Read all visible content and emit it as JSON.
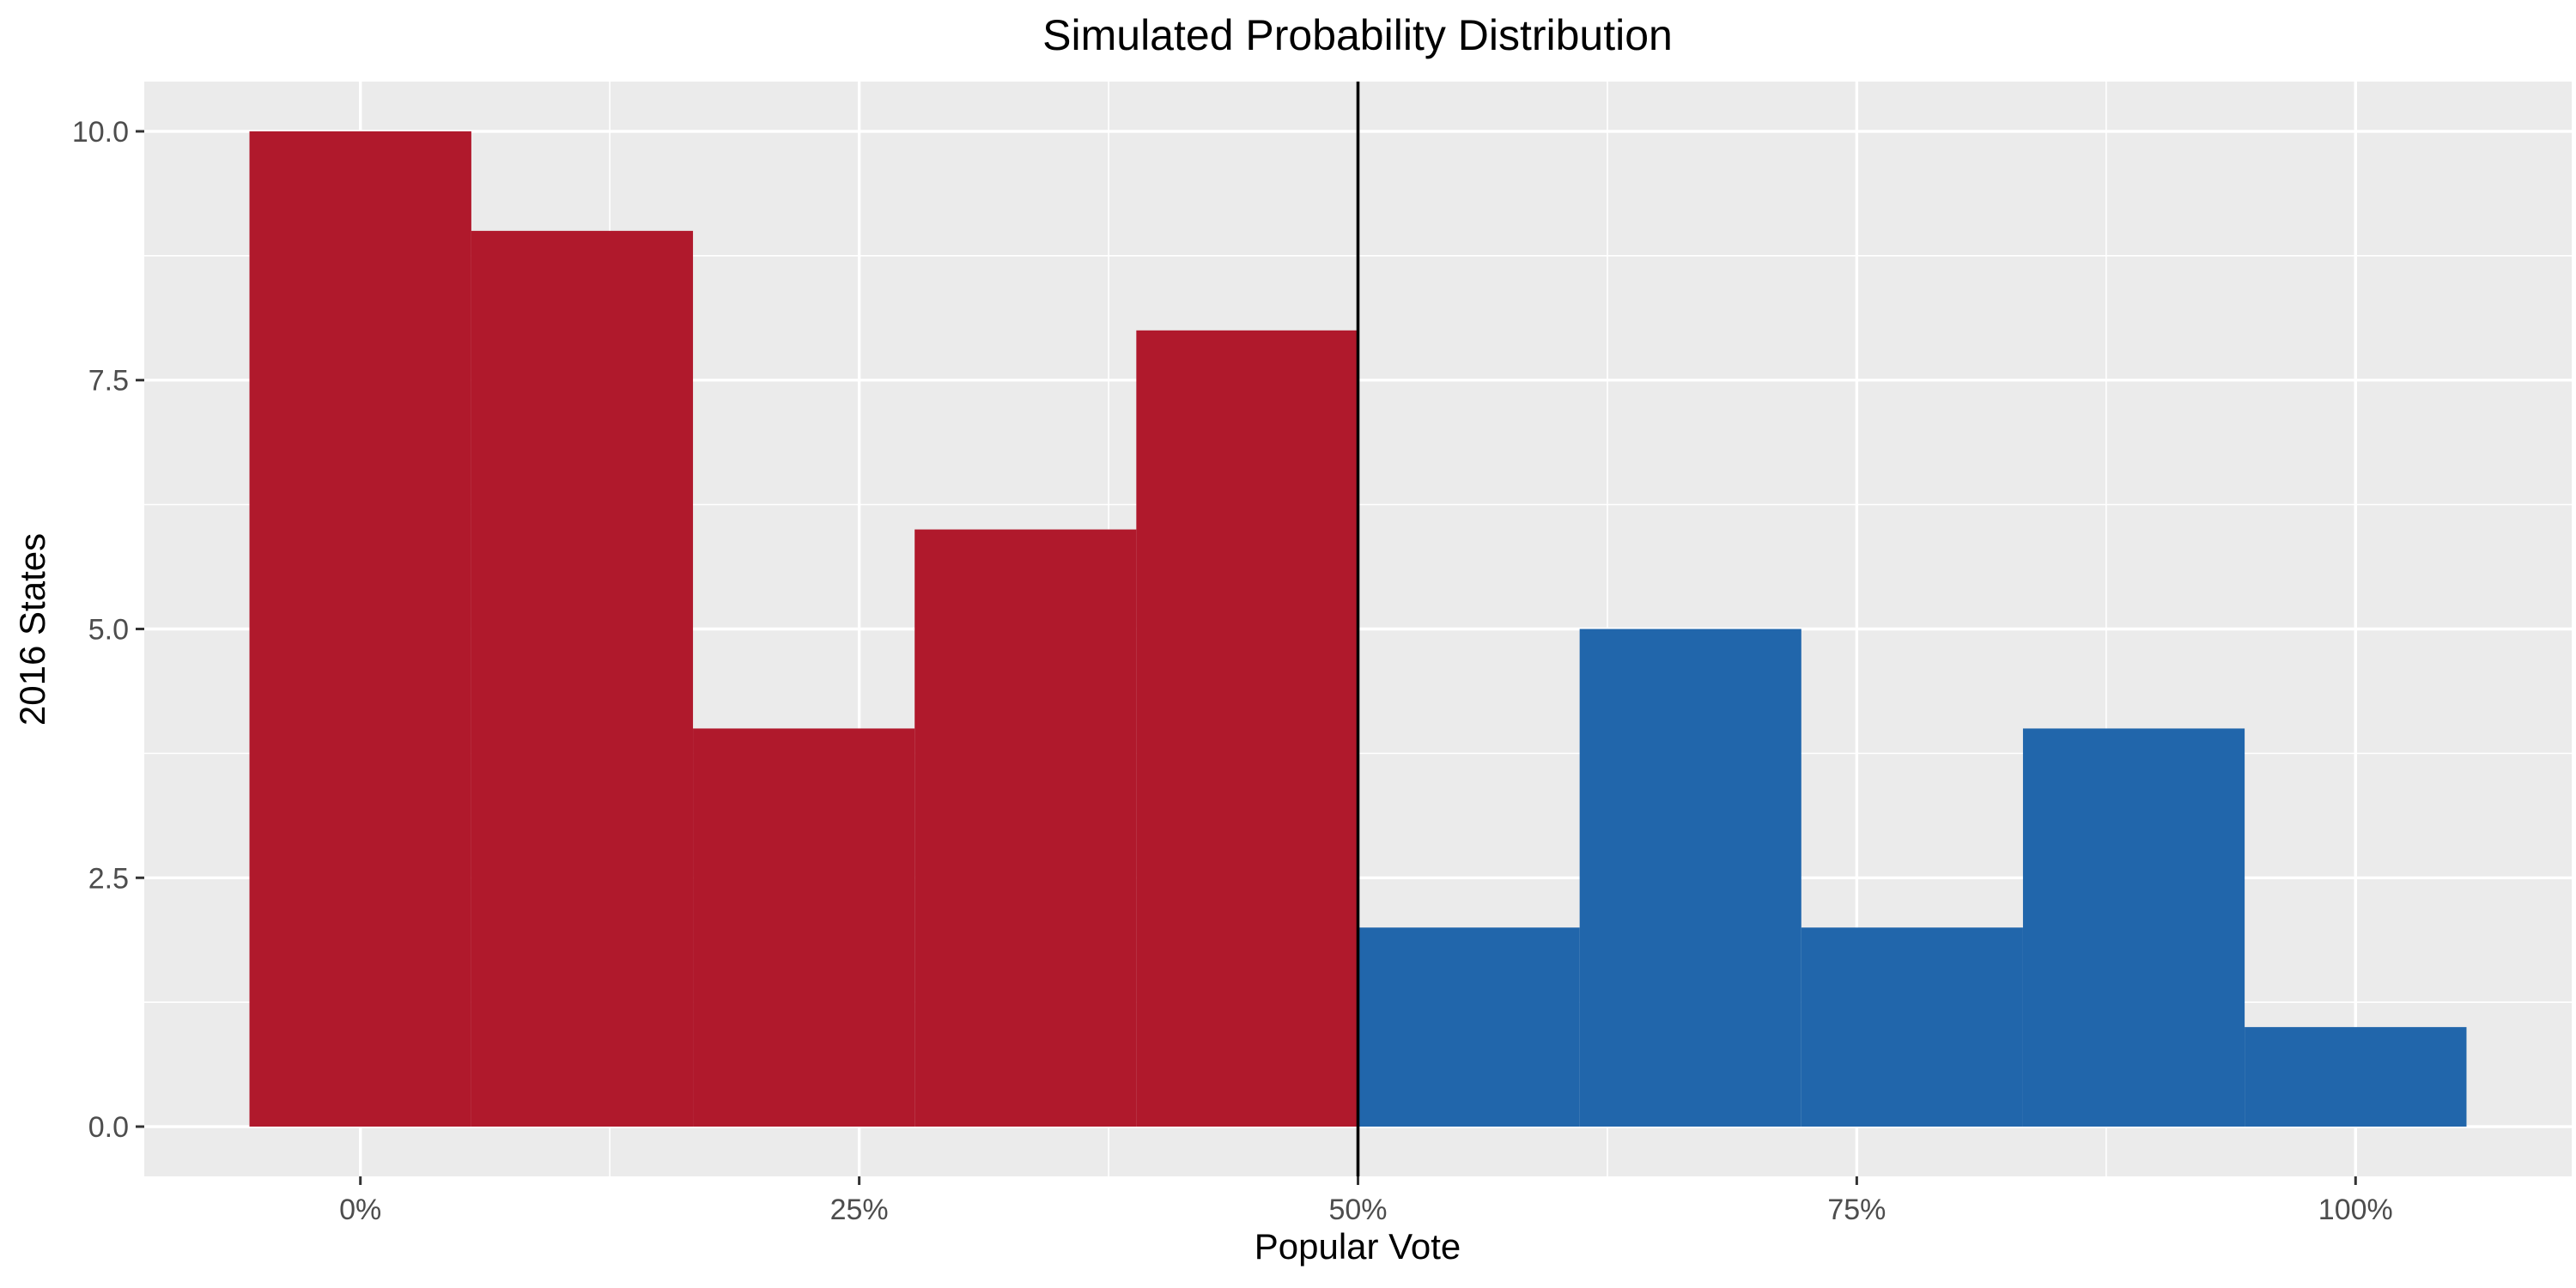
{
  "chart_data": {
    "type": "bar",
    "subtype": "histogram",
    "title": "Simulated Probability Distribution",
    "xlabel": "Popular Vote",
    "ylabel": "2016 States",
    "xlim": [
      -0.10833,
      1.10833
    ],
    "ylim": [
      -0.5,
      10.5
    ],
    "x_ticks": [
      {
        "value": 0,
        "label": "0%"
      },
      {
        "value": 0.25,
        "label": "25%"
      },
      {
        "value": 0.5,
        "label": "50%"
      },
      {
        "value": 0.75,
        "label": "75%"
      },
      {
        "value": 1,
        "label": "100%"
      }
    ],
    "y_ticks": [
      {
        "value": 0,
        "label": "0.0"
      },
      {
        "value": 2.5,
        "label": "2.5"
      },
      {
        "value": 5,
        "label": "5.0"
      },
      {
        "value": 7.5,
        "label": "7.5"
      },
      {
        "value": 10,
        "label": "10.0"
      }
    ],
    "bins": [
      {
        "x0": -0.0556,
        "x1": 0.0556,
        "count": 10,
        "side": "below"
      },
      {
        "x0": 0.0556,
        "x1": 0.1667,
        "count": 9,
        "side": "below"
      },
      {
        "x0": 0.1667,
        "x1": 0.2778,
        "count": 4,
        "side": "below"
      },
      {
        "x0": 0.2778,
        "x1": 0.3889,
        "count": 6,
        "side": "below"
      },
      {
        "x0": 0.3889,
        "x1": 0.5,
        "count": 8,
        "side": "below"
      },
      {
        "x0": 0.5,
        "x1": 0.6111,
        "count": 2,
        "side": "above"
      },
      {
        "x0": 0.6111,
        "x1": 0.7222,
        "count": 5,
        "side": "above"
      },
      {
        "x0": 0.7222,
        "x1": 0.8333,
        "count": 2,
        "side": "above"
      },
      {
        "x0": 0.8333,
        "x1": 0.9444,
        "count": 4,
        "side": "above"
      },
      {
        "x0": 0.9444,
        "x1": 1.0556,
        "count": 1,
        "side": "above"
      }
    ],
    "vline": 0.5,
    "grid": true,
    "legend": "none",
    "colors": {
      "below": "#b0192c",
      "above": "#2166ab",
      "panel": "#ebebeb",
      "grid": "#ffffff",
      "vline": "#000000"
    }
  }
}
